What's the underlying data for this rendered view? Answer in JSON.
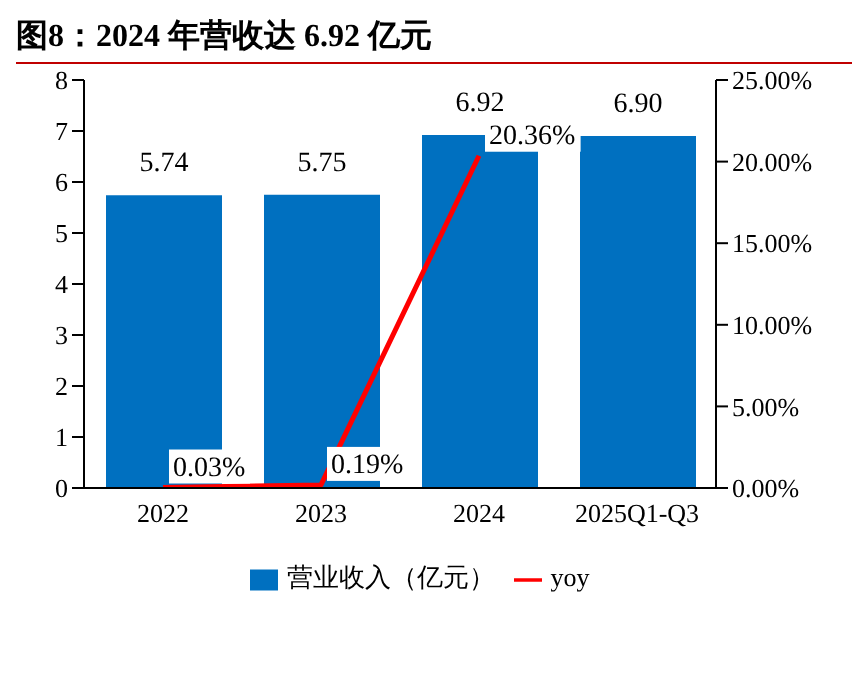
{
  "chart_data": {
    "type": "bar",
    "title": "图8：2024 年营收达 6.92 亿元",
    "categories": [
      "2022",
      "2023",
      "2024",
      "2025Q1-Q3"
    ],
    "series": [
      {
        "name": "营业收入（亿元）",
        "color": "#0070c0",
        "values": [
          5.74,
          5.75,
          6.92,
          6.9
        ],
        "value_labels": [
          "5.74",
          "5.75",
          "6.92",
          "6.90"
        ]
      },
      {
        "name": "yoy",
        "type": "line",
        "axis": "y2",
        "color": "#ff0000",
        "values": [
          0.03,
          0.19,
          20.36,
          null
        ],
        "value_labels": [
          "0.03%",
          "0.19%",
          "20.36%",
          null
        ]
      }
    ],
    "ylim": [
      0,
      8
    ],
    "yticks": [
      0,
      1,
      2,
      3,
      4,
      5,
      6,
      7,
      8
    ],
    "y2lim": [
      0,
      25
    ],
    "y2ticks": [
      {
        "value": 0,
        "label": "0.00%"
      },
      {
        "value": 5,
        "label": "5.00%"
      },
      {
        "value": 10,
        "label": "10.00%"
      },
      {
        "value": 15,
        "label": "15.00%"
      },
      {
        "value": 20,
        "label": "20.00%"
      },
      {
        "value": 25,
        "label": "25.00%"
      }
    ],
    "grid": false,
    "legend": "bottom"
  }
}
